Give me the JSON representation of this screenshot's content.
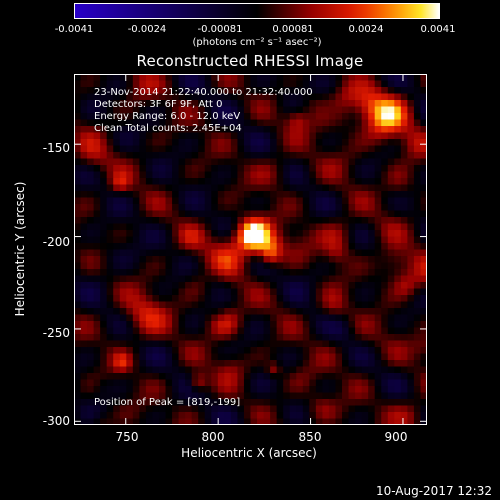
{
  "colorbar": {
    "tick_labels": [
      "-0.0041",
      "-0.0024",
      "-0.00081",
      "0.00081",
      "0.0024",
      "0.0041"
    ],
    "units": "(photons cm⁻² s⁻¹ asec⁻²)",
    "range": [
      -0.0041,
      0.0041
    ]
  },
  "image": {
    "title": "Reconstructed RHESSI Image",
    "annotations": {
      "time": "23-Nov-2014 21:22:40.000 to 21:32:40.000",
      "detectors": "Detectors: 3F 6F 9F, Att 0",
      "energy": "Energy Range: 6.0 - 12.0 keV",
      "clean": "Clean     Total counts: 2.45E+04",
      "peak": "Position of Peak = [819,-199]"
    },
    "peak_position": [
      819,
      -199
    ],
    "x_axis": {
      "label": "Heliocentric X (arcsec)",
      "ticks": [
        "750",
        "800",
        "850",
        "900"
      ],
      "tick_values": [
        750,
        800,
        850,
        900
      ],
      "range": [
        722,
        913
      ]
    },
    "y_axis": {
      "label": "Heliocentric Y (arcsec)",
      "ticks": [
        "-150",
        "-200",
        "-250",
        "-300"
      ],
      "tick_values": [
        -150,
        -200,
        -250,
        -300
      ],
      "range": [
        -302,
        -112
      ]
    }
  },
  "footer": {
    "timestamp": "10-Aug-2017 12:32"
  }
}
